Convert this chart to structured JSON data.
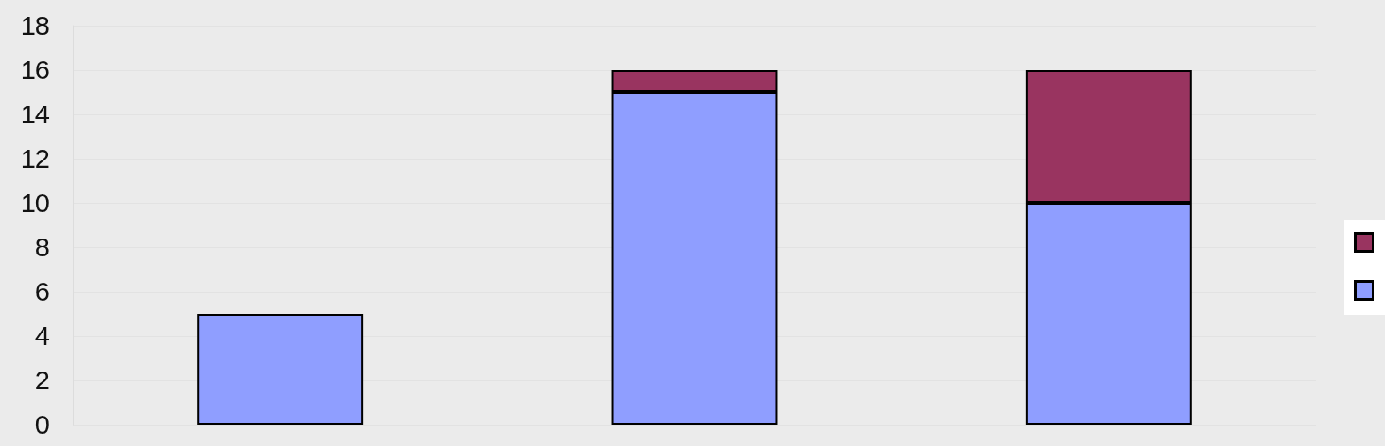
{
  "chart_data": {
    "type": "bar",
    "stacked": true,
    "categories": [
      null,
      null,
      null
    ],
    "series": [
      {
        "color": "#8f9eff",
        "values": [
          5,
          15,
          10
        ]
      },
      {
        "color": "#993460",
        "values": [
          null,
          1,
          6
        ]
      }
    ],
    "ylim": [
      0,
      18
    ],
    "yticks": [
      0,
      2,
      4,
      6,
      8,
      10,
      12,
      14,
      16,
      18
    ],
    "grid": "y"
  }
}
